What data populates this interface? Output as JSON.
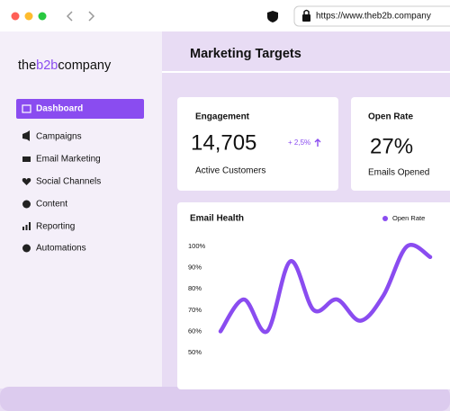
{
  "browser": {
    "url": "https://www.theb2b.company"
  },
  "sidebar": {
    "logo": [
      "the",
      "b2b",
      "company"
    ],
    "nav": [
      "Dashboard",
      "Campaigns",
      "Email Marketing",
      "Social Channels",
      "Content",
      "Reporting",
      "Automations"
    ]
  },
  "header": {
    "title": "Marketing Targets"
  },
  "cards": [
    {
      "title": "Engagement",
      "value": "14,705",
      "delta": "+ 2,5%",
      "caption": "Active Customers"
    },
    {
      "title": "Open Rate",
      "value": "27%",
      "caption": "Emails Opened"
    }
  ],
  "chart_data": {
    "type": "line",
    "title": "Email Health",
    "series": [
      {
        "name": "Open Rate",
        "color": "#8a4cf0",
        "values": [
          60,
          75,
          60,
          93,
          70,
          75,
          65,
          77,
          100,
          95
        ]
      }
    ],
    "ylim": [
      50,
      100
    ],
    "yticks": [
      {
        "value": 100,
        "label": "100%"
      },
      {
        "value": 90,
        "label": "90%"
      },
      {
        "value": 80,
        "label": "80%"
      },
      {
        "value": 70,
        "label": "70%"
      },
      {
        "value": 60,
        "label": "60%"
      },
      {
        "value": 50,
        "label": "50%"
      }
    ]
  }
}
